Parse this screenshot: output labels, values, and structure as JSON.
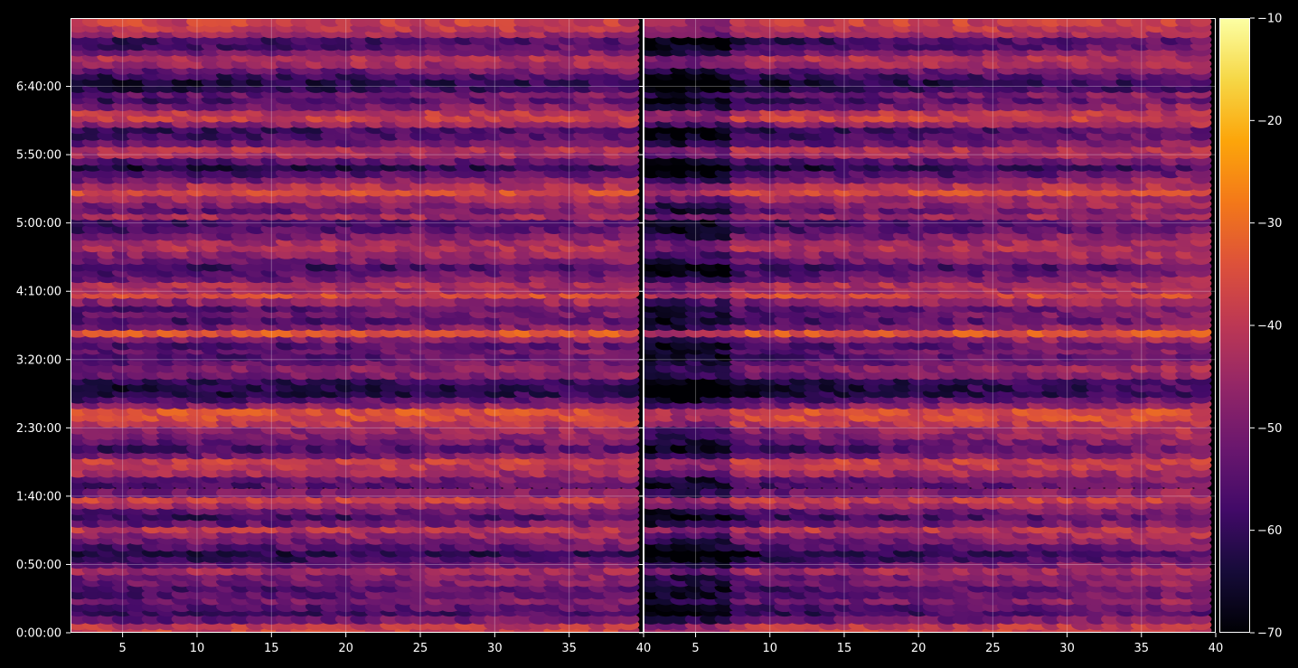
{
  "chart_data": {
    "type": "heatmap",
    "title": "",
    "panels": [
      {
        "xlabel": "",
        "ylabel": "",
        "xlim": [
          1.5,
          40
        ],
        "ylim": [
          0,
          27000
        ],
        "xticks": [
          5,
          10,
          15,
          20,
          25,
          30,
          35,
          40
        ],
        "yticks": [
          0,
          3000,
          6000,
          9000,
          12000,
          15000,
          18000,
          21000,
          24000
        ],
        "ytick_labels": [
          "0:00:00",
          "0:50:00",
          "1:40:00",
          "2:30:00",
          "3:20:00",
          "4:10:00",
          "5:00:00",
          "5:50:00",
          "6:40:00"
        ],
        "grid": true
      },
      {
        "xlabel": "",
        "ylabel": "",
        "xlim": [
          1.5,
          40
        ],
        "ylim": [
          0,
          27000
        ],
        "xticks": [
          5,
          10,
          15,
          20,
          25,
          30,
          35,
          40
        ],
        "yticks": [
          0,
          3000,
          6000,
          9000,
          12000,
          15000,
          18000,
          21000,
          24000
        ],
        "ytick_labels": [],
        "grid": true
      }
    ],
    "x_bins": {
      "start": 2,
      "end": 39,
      "step": 1
    },
    "row_times_sec": [
      100,
      350,
      600,
      950,
      1150,
      1450,
      1700,
      2000,
      2250,
      2500,
      2750,
      3050,
      3300,
      3550,
      3800,
      4100,
      4350,
      4600,
      4850,
      5150,
      5400,
      5650,
      5900,
      6150,
      6550,
      6800,
      7050,
      7350,
      7600,
      7850,
      8100,
      8450,
      8700,
      8950,
      9250,
      9500,
      9750,
      10050,
      10300,
      10550,
      10800,
      11100,
      11350,
      11650,
      11950,
      12150,
      12450,
      12650,
      12950,
      13200,
      13500,
      13750,
      14050,
      14300,
      14550,
      14900,
      15100,
      15350,
      15600,
      15850,
      16100,
      16400,
      16650,
      16950,
      17200,
      17450,
      17750,
      18050,
      18350,
      18600,
      18850,
      19100,
      19400,
      19650,
      19950,
      20200,
      20500,
      20750,
      21050,
      21300,
      21550,
      21850,
      22150,
      22400,
      22650,
      22900,
      23150,
      23450,
      23700,
      23950,
      24200,
      24500,
      24750,
      25000,
      25300,
      25550,
      25800,
      26050,
      26350,
      26600,
      26850
    ],
    "row_levels_db": [
      -38,
      -40,
      -52,
      -58,
      -55,
      -50,
      -54,
      -55,
      -50,
      -50,
      -44,
      -52,
      -58,
      -62,
      -55,
      -50,
      -46,
      -40,
      -52,
      -58,
      -52,
      -44,
      -38,
      -50,
      -55,
      -52,
      -44,
      -40,
      -38,
      -50,
      -56,
      -52,
      -48,
      -46,
      -40,
      -36,
      -35,
      -48,
      -55,
      -62,
      -62,
      -60,
      -50,
      -48,
      -52,
      -55,
      -52,
      -55,
      -48,
      -34,
      -50,
      -55,
      -52,
      -54,
      -46,
      -36,
      -44,
      -42,
      -50,
      -54,
      -58,
      -50,
      -46,
      -42,
      -44,
      -50,
      -55,
      -56,
      -44,
      -52,
      -48,
      -44,
      -36,
      -42,
      -50,
      -56,
      -62,
      -54,
      -44,
      -42,
      -52,
      -56,
      -58,
      -46,
      -38,
      -40,
      -50,
      -56,
      -52,
      -60,
      -62,
      -58,
      -52,
      -44,
      -42,
      -50,
      -56,
      -58,
      -44,
      -40,
      -38
    ],
    "colorbar": {
      "label": "",
      "range": [
        -70,
        -10
      ],
      "ticks": [
        -70,
        -60,
        -50,
        -40,
        -30,
        -20,
        -10
      ],
      "tick_labels": [
        "−70",
        "−60",
        "−50",
        "−40",
        "−30",
        "−20",
        "−10"
      ],
      "colormap": "inferno"
    },
    "colors": {
      "background": "#000000",
      "axes": "#ffffff",
      "grid": "#ffffff"
    }
  }
}
